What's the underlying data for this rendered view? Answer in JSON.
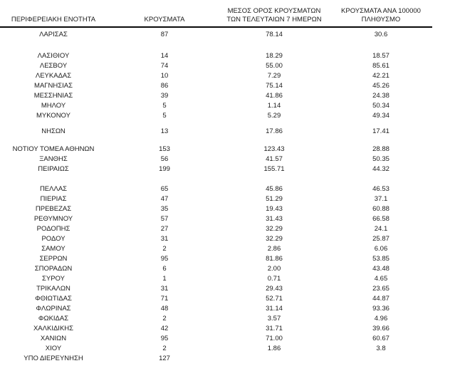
{
  "colors": {
    "text": "#1b1b1b",
    "rule": "#0a0a0a",
    "background": "#ffffff"
  },
  "table": {
    "headers": {
      "regional_unit": "ΠΕΡΙΦΕΡΕΙΑΚΗ ΕΝΟΤΗΤΑ",
      "cases": "ΚΡΟΥΣΜΑΤΑ",
      "avg7_line1": "ΜΕΣΟΣ ΟΡΟΣ ΚΡΟΥΣΜΑΤΩΝ",
      "avg7_line2": "ΤΩΝ ΤΕΛΕΥΤΑΙΩΝ 7 ΗΜΕΡΩΝ",
      "per100k_line1": "ΚΡΟΥΣΜΑΤΑ ΑΝΑ 100000",
      "per100k_line2": "ΠΛΗΘΥΣΜΟ"
    },
    "groups": [
      {
        "rows": [
          {
            "region": "ΛΑΡΙΣΑΣ",
            "cases": "87",
            "avg7": "78.14",
            "per100k": "30.6"
          }
        ]
      },
      {
        "rows": [
          {
            "region": "ΛΑΣΙΘΙΟΥ",
            "cases": "14",
            "avg7": "18.29",
            "per100k": "18.57"
          },
          {
            "region": "ΛΕΣΒΟΥ",
            "cases": "74",
            "avg7": "55.00",
            "per100k": "85.61"
          },
          {
            "region": "ΛΕΥΚΑΔΑΣ",
            "cases": "10",
            "avg7": "7.29",
            "per100k": "42.21"
          },
          {
            "region": "ΜΑΓΝΗΣΙΑΣ",
            "cases": "86",
            "avg7": "75.14",
            "per100k": "45.26"
          },
          {
            "region": "ΜΕΣΣΗΝΙΑΣ",
            "cases": "39",
            "avg7": "41.86",
            "per100k": "24.38"
          },
          {
            "region": "ΜΗΛΟΥ",
            "cases": "5",
            "avg7": "1.14",
            "per100k": "50.34"
          },
          {
            "region": "ΜΥΚΟΝΟΥ",
            "cases": "5",
            "avg7": "5.29",
            "per100k": "49.34"
          }
        ]
      },
      {
        "rows": [
          {
            "region": "ΝΗΣΩΝ",
            "cases": "13",
            "avg7": "17.86",
            "per100k": "17.41"
          }
        ]
      },
      {
        "rows": [
          {
            "region": "ΝΟΤΙΟΥ ΤΟΜΕΑ ΑΘΗΝΩΝ",
            "cases": "153",
            "avg7": "123.43",
            "per100k": "28.88"
          },
          {
            "region": "ΞΑΝΘΗΣ",
            "cases": "56",
            "avg7": "41.57",
            "per100k": "50.35"
          },
          {
            "region": "ΠΕΙΡΑΙΩΣ",
            "cases": "199",
            "avg7": "155.71",
            "per100k": "44.32"
          }
        ]
      },
      {
        "rows": [
          {
            "region": "ΠΕΛΛΑΣ",
            "cases": "65",
            "avg7": "45.86",
            "per100k": "46.53"
          },
          {
            "region": "ΠΙΕΡΙΑΣ",
            "cases": "47",
            "avg7": "51.29",
            "per100k": "37.1"
          },
          {
            "region": "ΠΡΕΒΕΖΑΣ",
            "cases": "35",
            "avg7": "19.43",
            "per100k": "60.88"
          },
          {
            "region": "ΡΕΘΥΜΝΟΥ",
            "cases": "57",
            "avg7": "31.43",
            "per100k": "66.58"
          },
          {
            "region": "ΡΟΔΟΠΗΣ",
            "cases": "27",
            "avg7": "32.29",
            "per100k": "24.1"
          },
          {
            "region": "ΡΟΔΟΥ",
            "cases": "31",
            "avg7": "32.29",
            "per100k": "25.87"
          },
          {
            "region": "ΣΑΜΟΥ",
            "cases": "2",
            "avg7": "2.86",
            "per100k": "6.06"
          },
          {
            "region": "ΣΕΡΡΩΝ",
            "cases": "95",
            "avg7": "81.86",
            "per100k": "53.85"
          },
          {
            "region": "ΣΠΟΡΑΔΩΝ",
            "cases": "6",
            "avg7": "2.00",
            "per100k": "43.48"
          },
          {
            "region": "ΣΥΡΟΥ",
            "cases": "1",
            "avg7": "0.71",
            "per100k": "4.65"
          },
          {
            "region": "ΤΡΙΚΑΛΩΝ",
            "cases": "31",
            "avg7": "29.43",
            "per100k": "23.65"
          },
          {
            "region": "ΦΘΙΩΤΙΔΑΣ",
            "cases": "71",
            "avg7": "52.71",
            "per100k": "44.87"
          },
          {
            "region": "ΦΛΩΡΙΝΑΣ",
            "cases": "48",
            "avg7": "31.14",
            "per100k": "93.36"
          },
          {
            "region": "ΦΩΚΙΔΑΣ",
            "cases": "2",
            "avg7": "3.57",
            "per100k": "4.96"
          },
          {
            "region": "ΧΑΛΚΙΔΙΚΗΣ",
            "cases": "42",
            "avg7": "31.71",
            "per100k": "39.66"
          },
          {
            "region": "ΧΑΝΙΩΝ",
            "cases": "95",
            "avg7": "71.00",
            "per100k": "60.67"
          },
          {
            "region": "ΧΙΟΥ",
            "cases": "2",
            "avg7": "1.86",
            "per100k": "3.8"
          },
          {
            "region": "ΥΠΟ ΔΙΕΡΕΥΝΗΣΗ",
            "cases": "127",
            "avg7": "",
            "per100k": ""
          }
        ]
      }
    ]
  }
}
